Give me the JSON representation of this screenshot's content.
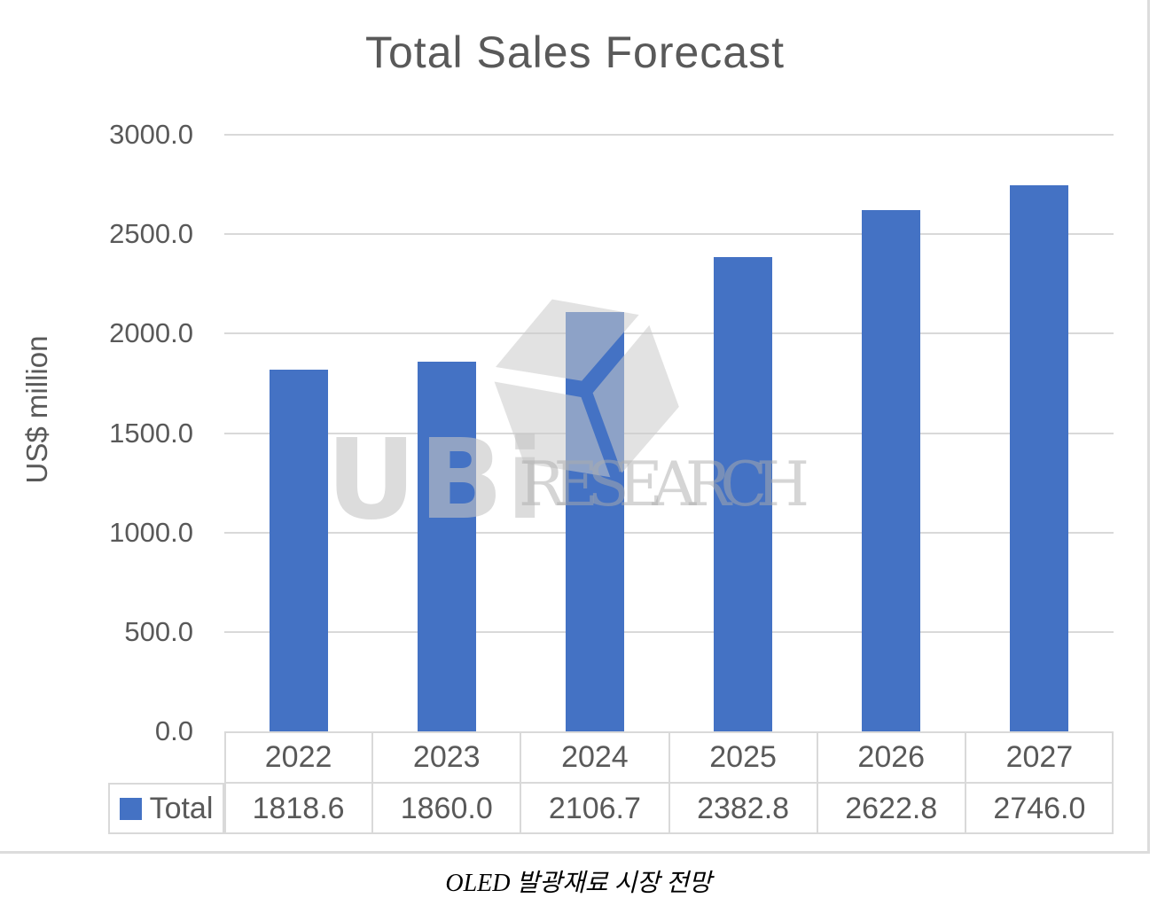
{
  "chart_data": {
    "type": "bar",
    "title": "Total Sales Forecast",
    "ylabel": "US$ million",
    "categories": [
      "2022",
      "2023",
      "2024",
      "2025",
      "2026",
      "2027"
    ],
    "series": [
      {
        "name": "Total",
        "values": [
          1818.6,
          1860.0,
          2106.7,
          2382.8,
          2622.8,
          2746.0
        ]
      }
    ],
    "ylim": [
      0,
      3000
    ],
    "ytick_interval": 500,
    "ytick_format": "one-decimal",
    "grid": "horizontal",
    "legend_position": "table-row-left",
    "bar_color": "#4472C4",
    "axis_text_color": "#595959",
    "gridline_color": "#D9D9D9"
  },
  "watermark": {
    "logo_text": "UBi",
    "brand_text": "RESEARCH",
    "icon": "cube-icon"
  },
  "caption": "OLED 발광재료 시장 전망"
}
